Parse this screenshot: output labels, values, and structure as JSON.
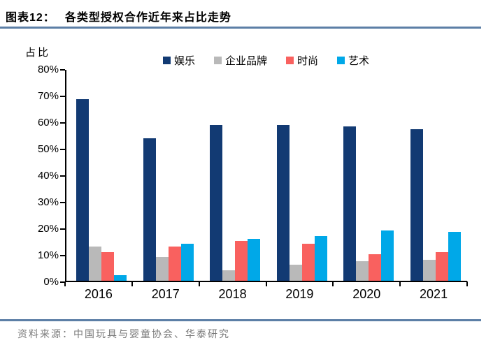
{
  "header": {
    "tag": "图表12：",
    "title": "各类型授权合作近年来占比走势"
  },
  "footer": {
    "source_prefix": "资料来源：",
    "source_text": "中国玩具与婴童协会、华泰研究"
  },
  "colors": {
    "rule": "#5c7fa6",
    "axis": "#000000",
    "entertainment": "#123a73",
    "corporate_brand": "#b9b9b9",
    "fashion": "#f9615f",
    "art": "#00a8e8"
  },
  "chart_data": {
    "type": "bar",
    "title": "各类型授权合作近年来占比走势",
    "ylabel": "占比",
    "xlabel": "",
    "categories": [
      "2016",
      "2017",
      "2018",
      "2019",
      "2020",
      "2021"
    ],
    "series": [
      {
        "name": "娱乐",
        "color": "#123a73",
        "values": [
          69,
          54,
          59,
          59,
          58.5,
          57.5
        ]
      },
      {
        "name": "企业品牌",
        "color": "#b9b9b9",
        "values": [
          13,
          9,
          4,
          6,
          7.5,
          8
        ]
      },
      {
        "name": "时尚",
        "color": "#f9615f",
        "values": [
          11,
          13,
          15,
          14,
          10,
          11
        ]
      },
      {
        "name": "艺术",
        "color": "#00a8e8",
        "values": [
          2,
          14,
          16,
          17,
          19,
          18.5
        ]
      }
    ],
    "ylim": [
      0,
      80
    ],
    "yticks": [
      "80%",
      "70%",
      "60%",
      "50%",
      "40%",
      "30%",
      "20%",
      "10%",
      "0%"
    ],
    "grid": false,
    "legend_position": "top-center"
  }
}
